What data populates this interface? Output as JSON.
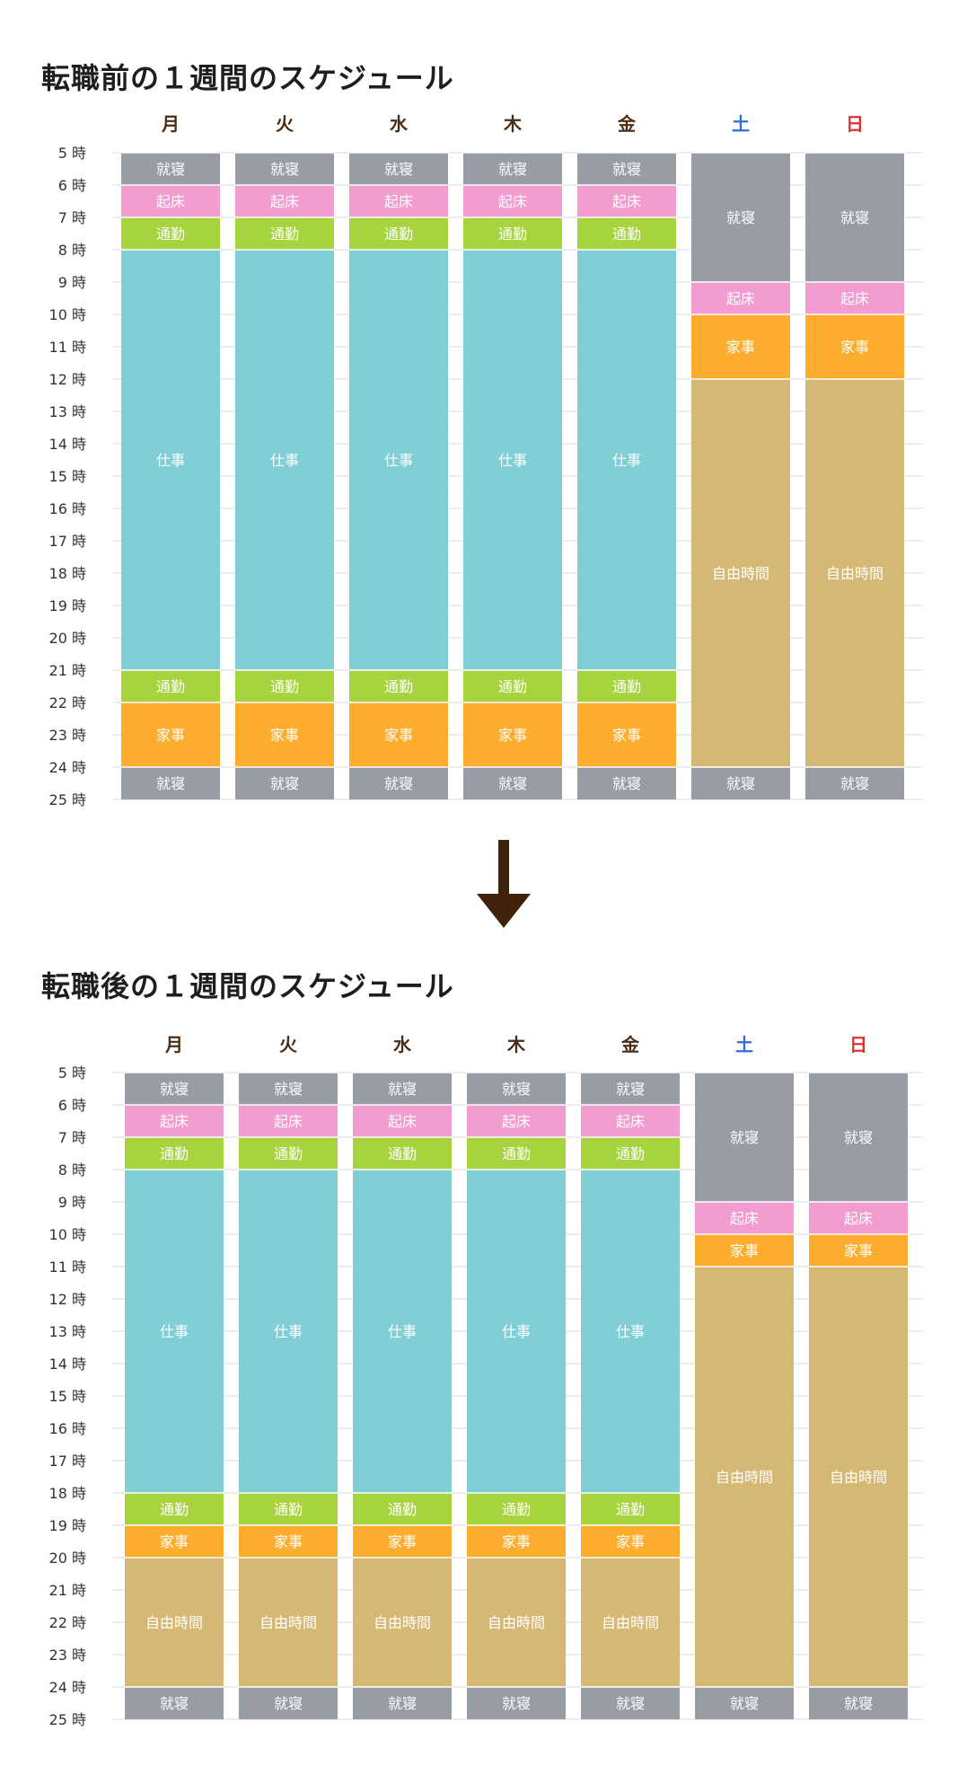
{
  "chart_data": [
    {
      "type": "bar",
      "title": "転職前の１週間のスケジュール",
      "hour_suffix": "時",
      "ylim": [
        5,
        25
      ],
      "yticks": [
        5,
        6,
        7,
        8,
        9,
        10,
        11,
        12,
        13,
        14,
        15,
        16,
        17,
        18,
        19,
        20,
        21,
        22,
        23,
        24,
        25
      ],
      "grid": true,
      "categories": [
        {
          "label": "月",
          "color": "#4a2d14"
        },
        {
          "label": "火",
          "color": "#4a2d14"
        },
        {
          "label": "水",
          "color": "#4a2d14"
        },
        {
          "label": "木",
          "color": "#4a2d14"
        },
        {
          "label": "金",
          "color": "#4a2d14"
        },
        {
          "label": "土",
          "color": "#2f6fd0"
        },
        {
          "label": "日",
          "color": "#e0312f"
        }
      ],
      "schedule": [
        [
          {
            "label": "就寝",
            "start": 5,
            "end": 6
          },
          {
            "label": "起床",
            "start": 6,
            "end": 7
          },
          {
            "label": "通勤",
            "start": 7,
            "end": 8
          },
          {
            "label": "仕事",
            "start": 8,
            "end": 21
          },
          {
            "label": "通勤",
            "start": 21,
            "end": 22
          },
          {
            "label": "家事",
            "start": 22,
            "end": 24
          },
          {
            "label": "就寝",
            "start": 24,
            "end": 25
          }
        ],
        [
          {
            "label": "就寝",
            "start": 5,
            "end": 6
          },
          {
            "label": "起床",
            "start": 6,
            "end": 7
          },
          {
            "label": "通勤",
            "start": 7,
            "end": 8
          },
          {
            "label": "仕事",
            "start": 8,
            "end": 21
          },
          {
            "label": "通勤",
            "start": 21,
            "end": 22
          },
          {
            "label": "家事",
            "start": 22,
            "end": 24
          },
          {
            "label": "就寝",
            "start": 24,
            "end": 25
          }
        ],
        [
          {
            "label": "就寝",
            "start": 5,
            "end": 6
          },
          {
            "label": "起床",
            "start": 6,
            "end": 7
          },
          {
            "label": "通勤",
            "start": 7,
            "end": 8
          },
          {
            "label": "仕事",
            "start": 8,
            "end": 21
          },
          {
            "label": "通勤",
            "start": 21,
            "end": 22
          },
          {
            "label": "家事",
            "start": 22,
            "end": 24
          },
          {
            "label": "就寝",
            "start": 24,
            "end": 25
          }
        ],
        [
          {
            "label": "就寝",
            "start": 5,
            "end": 6
          },
          {
            "label": "起床",
            "start": 6,
            "end": 7
          },
          {
            "label": "通勤",
            "start": 7,
            "end": 8
          },
          {
            "label": "仕事",
            "start": 8,
            "end": 21
          },
          {
            "label": "通勤",
            "start": 21,
            "end": 22
          },
          {
            "label": "家事",
            "start": 22,
            "end": 24
          },
          {
            "label": "就寝",
            "start": 24,
            "end": 25
          }
        ],
        [
          {
            "label": "就寝",
            "start": 5,
            "end": 6
          },
          {
            "label": "起床",
            "start": 6,
            "end": 7
          },
          {
            "label": "通勤",
            "start": 7,
            "end": 8
          },
          {
            "label": "仕事",
            "start": 8,
            "end": 21
          },
          {
            "label": "通勤",
            "start": 21,
            "end": 22
          },
          {
            "label": "家事",
            "start": 22,
            "end": 24
          },
          {
            "label": "就寝",
            "start": 24,
            "end": 25
          }
        ],
        [
          {
            "label": "就寝",
            "start": 5,
            "end": 9
          },
          {
            "label": "起床",
            "start": 9,
            "end": 10
          },
          {
            "label": "家事",
            "start": 10,
            "end": 12
          },
          {
            "label": "自由時間",
            "start": 12,
            "end": 24
          },
          {
            "label": "就寝",
            "start": 24,
            "end": 25
          }
        ],
        [
          {
            "label": "就寝",
            "start": 5,
            "end": 9
          },
          {
            "label": "起床",
            "start": 9,
            "end": 10
          },
          {
            "label": "家事",
            "start": 10,
            "end": 12
          },
          {
            "label": "自由時間",
            "start": 12,
            "end": 24
          },
          {
            "label": "就寝",
            "start": 24,
            "end": 25
          }
        ]
      ]
    },
    {
      "type": "bar",
      "title": "転職後の１週間のスケジュール",
      "hour_suffix": "時",
      "ylim": [
        5,
        25
      ],
      "yticks": [
        5,
        6,
        7,
        8,
        9,
        10,
        11,
        12,
        13,
        14,
        15,
        16,
        17,
        18,
        19,
        20,
        21,
        22,
        23,
        24,
        25
      ],
      "grid": true,
      "categories": [
        {
          "label": "月",
          "color": "#4a2d14"
        },
        {
          "label": "火",
          "color": "#4a2d14"
        },
        {
          "label": "水",
          "color": "#4a2d14"
        },
        {
          "label": "木",
          "color": "#4a2d14"
        },
        {
          "label": "金",
          "color": "#4a2d14"
        },
        {
          "label": "土",
          "color": "#2f6fd0"
        },
        {
          "label": "日",
          "color": "#e0312f"
        }
      ],
      "schedule": [
        [
          {
            "label": "就寝",
            "start": 5,
            "end": 6
          },
          {
            "label": "起床",
            "start": 6,
            "end": 7
          },
          {
            "label": "通勤",
            "start": 7,
            "end": 8
          },
          {
            "label": "仕事",
            "start": 8,
            "end": 18
          },
          {
            "label": "通勤",
            "start": 18,
            "end": 19
          },
          {
            "label": "家事",
            "start": 19,
            "end": 20
          },
          {
            "label": "自由時間",
            "start": 20,
            "end": 24
          },
          {
            "label": "就寝",
            "start": 24,
            "end": 25
          }
        ],
        [
          {
            "label": "就寝",
            "start": 5,
            "end": 6
          },
          {
            "label": "起床",
            "start": 6,
            "end": 7
          },
          {
            "label": "通勤",
            "start": 7,
            "end": 8
          },
          {
            "label": "仕事",
            "start": 8,
            "end": 18
          },
          {
            "label": "通勤",
            "start": 18,
            "end": 19
          },
          {
            "label": "家事",
            "start": 19,
            "end": 20
          },
          {
            "label": "自由時間",
            "start": 20,
            "end": 24
          },
          {
            "label": "就寝",
            "start": 24,
            "end": 25
          }
        ],
        [
          {
            "label": "就寝",
            "start": 5,
            "end": 6
          },
          {
            "label": "起床",
            "start": 6,
            "end": 7
          },
          {
            "label": "通勤",
            "start": 7,
            "end": 8
          },
          {
            "label": "仕事",
            "start": 8,
            "end": 18
          },
          {
            "label": "通勤",
            "start": 18,
            "end": 19
          },
          {
            "label": "家事",
            "start": 19,
            "end": 20
          },
          {
            "label": "自由時間",
            "start": 20,
            "end": 24
          },
          {
            "label": "就寝",
            "start": 24,
            "end": 25
          }
        ],
        [
          {
            "label": "就寝",
            "start": 5,
            "end": 6
          },
          {
            "label": "起床",
            "start": 6,
            "end": 7
          },
          {
            "label": "通勤",
            "start": 7,
            "end": 8
          },
          {
            "label": "仕事",
            "start": 8,
            "end": 18
          },
          {
            "label": "通勤",
            "start": 18,
            "end": 19
          },
          {
            "label": "家事",
            "start": 19,
            "end": 20
          },
          {
            "label": "自由時間",
            "start": 20,
            "end": 24
          },
          {
            "label": "就寝",
            "start": 24,
            "end": 25
          }
        ],
        [
          {
            "label": "就寝",
            "start": 5,
            "end": 6
          },
          {
            "label": "起床",
            "start": 6,
            "end": 7
          },
          {
            "label": "通勤",
            "start": 7,
            "end": 8
          },
          {
            "label": "仕事",
            "start": 8,
            "end": 18
          },
          {
            "label": "通勤",
            "start": 18,
            "end": 19
          },
          {
            "label": "家事",
            "start": 19,
            "end": 20
          },
          {
            "label": "自由時間",
            "start": 20,
            "end": 24
          },
          {
            "label": "就寝",
            "start": 24,
            "end": 25
          }
        ],
        [
          {
            "label": "就寝",
            "start": 5,
            "end": 9
          },
          {
            "label": "起床",
            "start": 9,
            "end": 10
          },
          {
            "label": "家事",
            "start": 10,
            "end": 11
          },
          {
            "label": "自由時間",
            "start": 11,
            "end": 24
          },
          {
            "label": "就寝",
            "start": 24,
            "end": 25
          }
        ],
        [
          {
            "label": "就寝",
            "start": 5,
            "end": 9
          },
          {
            "label": "起床",
            "start": 9,
            "end": 10
          },
          {
            "label": "家事",
            "start": 10,
            "end": 11
          },
          {
            "label": "自由時間",
            "start": 11,
            "end": 24
          },
          {
            "label": "就寝",
            "start": 24,
            "end": 25
          }
        ]
      ]
    }
  ],
  "activity_colors": {
    "就寝": "#979ca5",
    "起床": "#f29cd0",
    "通勤": "#a6d33e",
    "仕事": "#80ced6",
    "家事": "#fcad2d",
    "自由時間": "#d5b874"
  },
  "arrow": {
    "icon": "down-arrow-icon",
    "color": "#3f2209"
  }
}
